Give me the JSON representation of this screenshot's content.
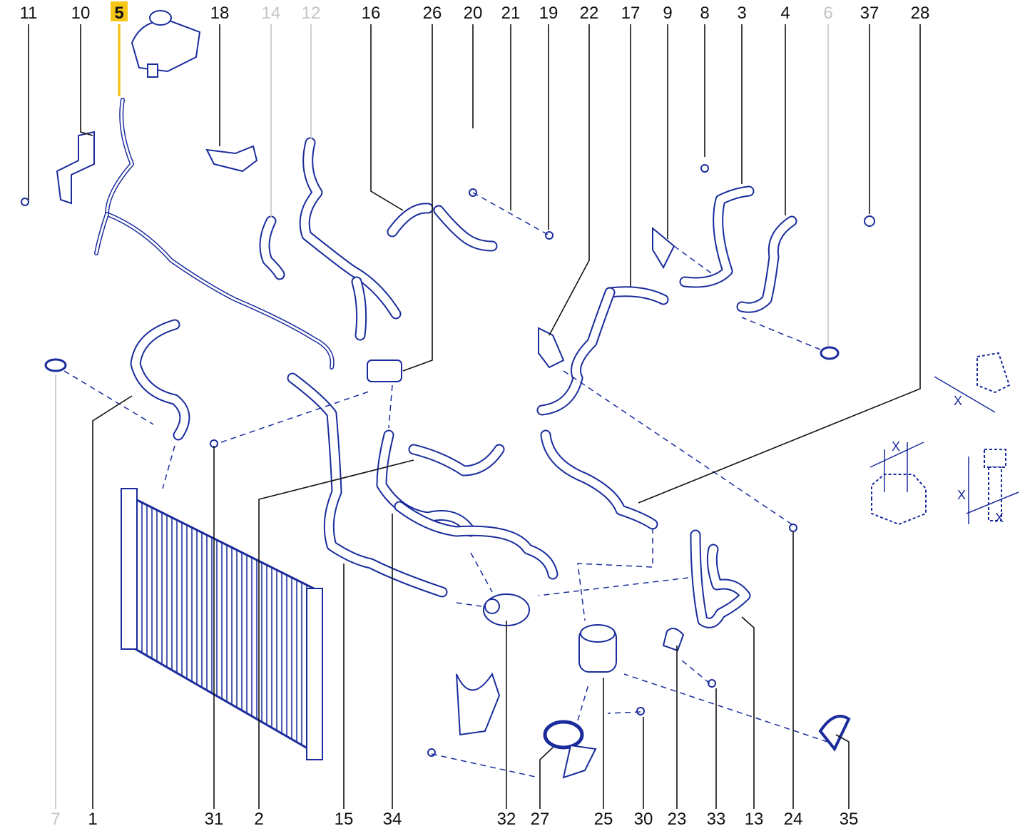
{
  "diagram": {
    "accent_color": "#1a2c9c",
    "highlight_color": "#f5c518",
    "dimmed_color": "#c4c4c4",
    "top_labels": [
      {
        "number": "11",
        "state": "normal"
      },
      {
        "number": "10",
        "state": "normal"
      },
      {
        "number": "5",
        "state": "highlighted"
      },
      {
        "number": "18",
        "state": "normal"
      },
      {
        "number": "14",
        "state": "dimmed"
      },
      {
        "number": "12",
        "state": "dimmed"
      },
      {
        "number": "16",
        "state": "normal"
      },
      {
        "number": "26",
        "state": "normal"
      },
      {
        "number": "20",
        "state": "normal"
      },
      {
        "number": "21",
        "state": "normal"
      },
      {
        "number": "19",
        "state": "normal"
      },
      {
        "number": "22",
        "state": "normal"
      },
      {
        "number": "17",
        "state": "normal"
      },
      {
        "number": "9",
        "state": "normal"
      },
      {
        "number": "8",
        "state": "normal"
      },
      {
        "number": "3",
        "state": "normal"
      },
      {
        "number": "4",
        "state": "normal"
      },
      {
        "number": "6",
        "state": "dimmed"
      },
      {
        "number": "37",
        "state": "normal"
      },
      {
        "number": "28",
        "state": "normal"
      }
    ],
    "bottom_labels": [
      {
        "number": "7",
        "state": "dimmed"
      },
      {
        "number": "1",
        "state": "normal"
      },
      {
        "number": "31",
        "state": "normal"
      },
      {
        "number": "2",
        "state": "normal"
      },
      {
        "number": "15",
        "state": "normal"
      },
      {
        "number": "34",
        "state": "normal"
      },
      {
        "number": "32",
        "state": "normal"
      },
      {
        "number": "27",
        "state": "normal"
      },
      {
        "number": "25",
        "state": "normal"
      },
      {
        "number": "30",
        "state": "normal"
      },
      {
        "number": "23",
        "state": "normal"
      },
      {
        "number": "33",
        "state": "normal"
      },
      {
        "number": "13",
        "state": "normal"
      },
      {
        "number": "24",
        "state": "normal"
      },
      {
        "number": "35",
        "state": "normal"
      }
    ],
    "dimension_marker": "X"
  }
}
